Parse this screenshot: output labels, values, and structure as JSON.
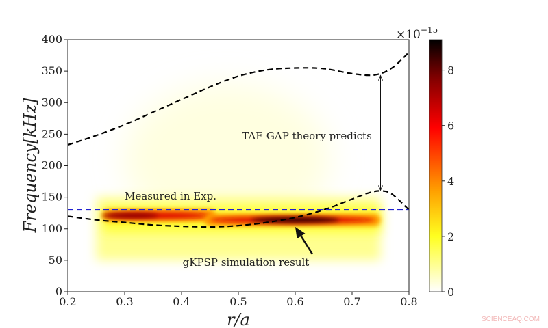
{
  "chart_data": {
    "type": "heatmap",
    "xlabel": "r/a",
    "ylabel": "Frequency[kHz]",
    "xlim": [
      0.2,
      0.8
    ],
    "ylim": [
      0,
      400
    ],
    "xticks": [
      "0.2",
      "0.3",
      "0.4",
      "0.5",
      "0.6",
      "0.7",
      "0.8"
    ],
    "yticks": [
      "0",
      "50",
      "100",
      "150",
      "200",
      "250",
      "300",
      "350",
      "400"
    ],
    "colorbar": {
      "range": [
        0,
        9.1
      ],
      "ticks": [
        "0",
        "2",
        "4",
        "6",
        "8"
      ],
      "multiplier": "×10",
      "exponent": "−15",
      "colormap": "afmhot_r"
    },
    "heatmap_region": {
      "r": [
        0.25,
        0.75
      ],
      "freq": [
        50,
        150
      ]
    },
    "ridges": [
      {
        "r": [
          0.26,
          0.46
        ],
        "freq": 121,
        "peak_r": 0.31,
        "peak": 7.5
      },
      {
        "r": [
          0.44,
          0.75
        ],
        "freq": 114,
        "peak_r": 0.6,
        "peak": 9
      }
    ],
    "series": [
      {
        "style": "black-dashed",
        "x": [
          0.2,
          0.25,
          0.3,
          0.35,
          0.4,
          0.45,
          0.5,
          0.55,
          0.6,
          0.65,
          0.7,
          0.74,
          0.77,
          0.8
        ],
        "y": [
          233,
          248,
          265,
          285,
          305,
          325,
          342,
          352,
          355,
          354,
          346,
          344,
          355,
          380
        ]
      },
      {
        "style": "black-dashed",
        "x": [
          0.2,
          0.25,
          0.3,
          0.35,
          0.4,
          0.45,
          0.5,
          0.55,
          0.6,
          0.65,
          0.7,
          0.73,
          0.75,
          0.77,
          0.8
        ],
        "y": [
          120,
          114,
          110,
          106,
          104,
          103,
          105,
          110,
          118,
          130,
          147,
          157,
          160,
          155,
          130
        ]
      },
      {
        "style": "blue-dashed",
        "x": [
          0.2,
          0.8
        ],
        "y": [
          130,
          130
        ]
      }
    ],
    "annotations": [
      {
        "text": "TAE GAP theory predicts",
        "x": 0.6,
        "y": 245
      },
      {
        "text": "Measured in Exp.",
        "x": 0.3,
        "y": 150
      },
      {
        "text": "gKPSP simulation result",
        "x": 0.52,
        "y": 45
      }
    ],
    "gap_arrow": {
      "x": 0.75,
      "y": [
        160,
        344
      ]
    },
    "sim_arrow": {
      "from": [
        0.63,
        60
      ],
      "to": [
        0.6,
        103
      ]
    },
    "grid": false,
    "colors": {
      "blue_line": "#2020d0",
      "dashed": "#000000"
    }
  },
  "watermark": "SCIENCEAQ.COM"
}
